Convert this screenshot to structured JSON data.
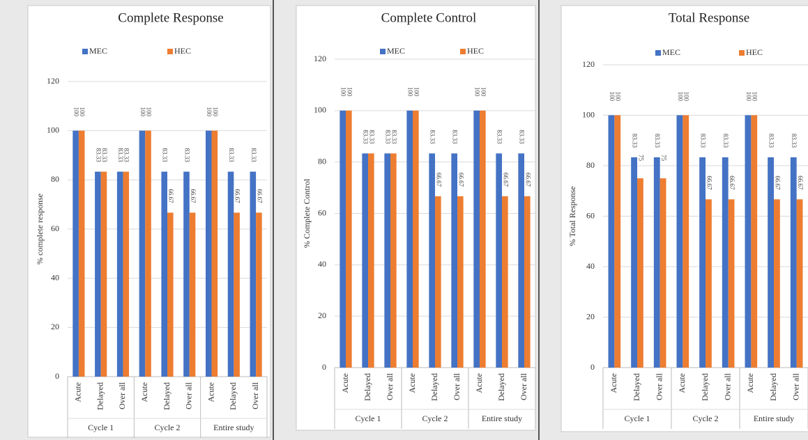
{
  "chart_data": [
    {
      "type": "bar",
      "title": "Complete Response",
      "y_label": "% complete response",
      "groups": [
        {
          "name": "Cycle 1",
          "categories": [
            "Acute",
            "Delayed",
            "Over all"
          ]
        },
        {
          "name": "Cycle 2",
          "categories": [
            "Acute",
            "Delayed",
            "Over all"
          ]
        },
        {
          "name": "Entire study",
          "categories": [
            "Acute",
            "Delayed",
            "Over all"
          ]
        }
      ],
      "series": [
        {
          "name": "MEC",
          "color": "#4472c4",
          "values": [
            100,
            83.33,
            83.33,
            100,
            83.33,
            83.33,
            100,
            83.33,
            83.33
          ]
        },
        {
          "name": "HEC",
          "color": "#ed7d31",
          "values": [
            100,
            83.33,
            83.33,
            100,
            66.67,
            66.67,
            100,
            66.67,
            66.67
          ]
        }
      ],
      "ylim": [
        0,
        120
      ],
      "yticks": [
        0,
        20,
        40,
        60,
        80,
        100,
        120
      ],
      "grid": true
    },
    {
      "type": "bar",
      "title": "Complete Control",
      "y_label": "% Complete Control",
      "groups": [
        {
          "name": "Cycle 1",
          "categories": [
            "Acute",
            "Delayed",
            "Over all"
          ]
        },
        {
          "name": "Cycle 2",
          "categories": [
            "Acute",
            "Delayed",
            "Over all"
          ]
        },
        {
          "name": "Entire study",
          "categories": [
            "Acute",
            "Delayed",
            "Over all"
          ]
        }
      ],
      "series": [
        {
          "name": "MEC",
          "color": "#4472c4",
          "values": [
            100,
            83.33,
            83.33,
            100,
            83.33,
            83.33,
            100,
            83.33,
            83.33
          ]
        },
        {
          "name": "HEC",
          "color": "#ed7d31",
          "values": [
            100,
            83.33,
            83.33,
            100,
            66.67,
            66.67,
            100,
            66.67,
            66.67
          ]
        }
      ],
      "ylim": [
        0,
        120
      ],
      "yticks": [
        0,
        20,
        40,
        60,
        80,
        100,
        120
      ],
      "grid": true
    },
    {
      "type": "bar",
      "title": "Total Response",
      "y_label": "% Total Response",
      "groups": [
        {
          "name": "Cycle 1",
          "categories": [
            "Acute",
            "Delayed",
            "Over all"
          ]
        },
        {
          "name": "Cycle 2",
          "categories": [
            "Acute",
            "Delayed",
            "Over all"
          ]
        },
        {
          "name": "Entire study",
          "categories": [
            "Acute",
            "Delayed",
            "Over all"
          ]
        }
      ],
      "series": [
        {
          "name": "MEC",
          "color": "#4472c4",
          "values": [
            100,
            83.33,
            83.33,
            100,
            83.33,
            83.33,
            100,
            83.33,
            83.33
          ]
        },
        {
          "name": "HEC",
          "color": "#ed7d31",
          "values": [
            100,
            75,
            75,
            100,
            66.67,
            66.67,
            100,
            66.67,
            66.67
          ]
        }
      ],
      "ylim": [
        0,
        120
      ],
      "yticks": [
        0,
        20,
        40,
        60,
        80,
        100,
        120
      ],
      "grid": true
    }
  ]
}
